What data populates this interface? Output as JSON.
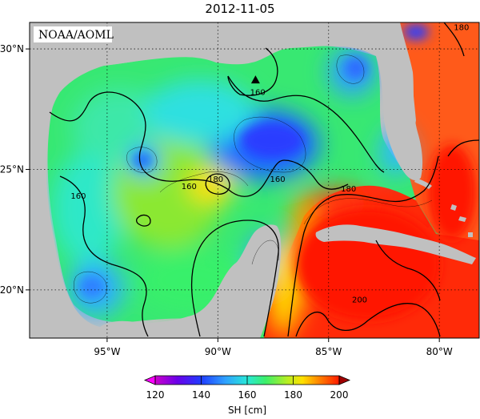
{
  "map": {
    "title": "2012-11-05",
    "credit": "NOAA/AOML",
    "lon_range": [
      -98.5,
      -78.2
    ],
    "lat_range": [
      18.0,
      31.1
    ],
    "lon_ticks": [
      {
        "value": -95,
        "label": "95°W"
      },
      {
        "value": -90,
        "label": "90°W"
      },
      {
        "value": -85,
        "label": "85°W"
      },
      {
        "value": -80,
        "label": "80°W"
      }
    ],
    "lat_ticks": [
      {
        "value": 20,
        "label": "20°N"
      },
      {
        "value": 25,
        "label": "25°N"
      },
      {
        "value": 30,
        "label": "30°N"
      }
    ],
    "contour_labels": [
      {
        "text": "160",
        "lon": -88.2,
        "lat": 28.2
      },
      {
        "text": "160",
        "lon": -91.3,
        "lat": 24.3
      },
      {
        "text": "180",
        "lon": -90.1,
        "lat": 24.6
      },
      {
        "text": "160",
        "lon": -87.3,
        "lat": 24.6
      },
      {
        "text": "160",
        "lon": -96.3,
        "lat": 23.9
      },
      {
        "text": "180",
        "lon": -84.1,
        "lat": 24.2
      },
      {
        "text": "200",
        "lon": -83.6,
        "lat": 19.6
      },
      {
        "text": "180",
        "lon": -79.0,
        "lat": 30.9
      }
    ],
    "marker": {
      "shape": "triangle",
      "lon": -88.3,
      "lat": 28.7
    },
    "land_color": "#c0c0c0"
  },
  "colorbar": {
    "label": "SH [cm]",
    "min": 120,
    "max": 200,
    "ticks": [
      "120",
      "140",
      "160",
      "180",
      "200"
    ],
    "colors": [
      "#cc00cc",
      "#7a00e6",
      "#2a2aff",
      "#2e8bff",
      "#4fd3ff",
      "#2ff0c8",
      "#38f06a",
      "#7ee82a",
      "#d8f020",
      "#ffe000",
      "#ff9a00",
      "#ff4800",
      "#ff1400"
    ]
  }
}
